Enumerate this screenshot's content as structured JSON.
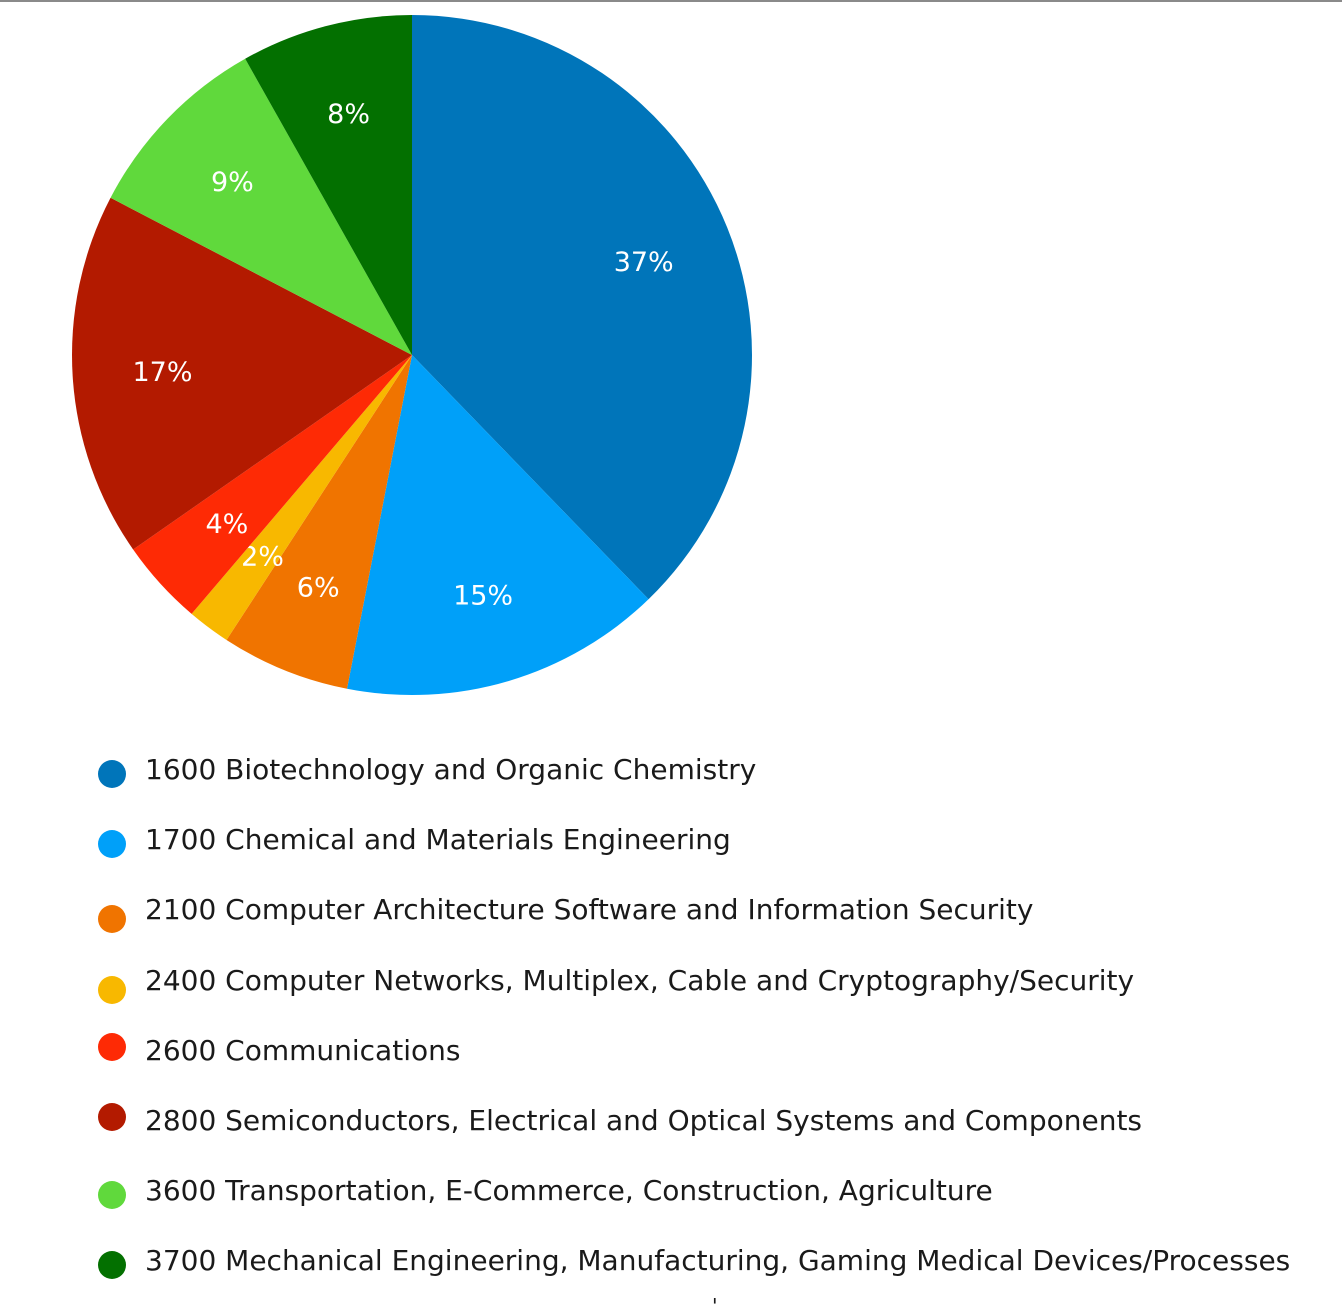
{
  "chart_data": {
    "type": "pie",
    "title": "",
    "legend_position": "bottom",
    "slices": [
      {
        "label": "1600 Biotechnology and Organic Chemistry",
        "value": 37,
        "display": "37%",
        "color": "#0075BA"
      },
      {
        "label": "1700 Chemical and Materials Engineering",
        "value": 15,
        "display": "15%",
        "color": "#00A0F9"
      },
      {
        "label": "2100 Computer Architecture Software and Information Security",
        "value": 6,
        "display": "6%",
        "color": "#F07400"
      },
      {
        "label": "2400 Computer Networks, Multiplex, Cable and Cryptography/Security",
        "value": 2,
        "display": "2%",
        "color": "#F8B800"
      },
      {
        "label": "2600 Communications",
        "value": 4,
        "display": "4%",
        "color": "#FE2A05"
      },
      {
        "label": "2800 Semiconductors, Electrical and Optical Systems and Components",
        "value": 17,
        "display": "17%",
        "color": "#B31A00"
      },
      {
        "label": "3600 Transportation, E-Commerce, Construction, Agriculture",
        "value": 9,
        "display": "9%",
        "color": "#60D93C"
      },
      {
        "label": "3700 Mechanical Engineering, Manufacturing, Gaming Medical Devices/Processes",
        "value": 8,
        "display": "8%",
        "color": "#037000"
      }
    ]
  },
  "footer": {
    "stray_mark": "'"
  }
}
